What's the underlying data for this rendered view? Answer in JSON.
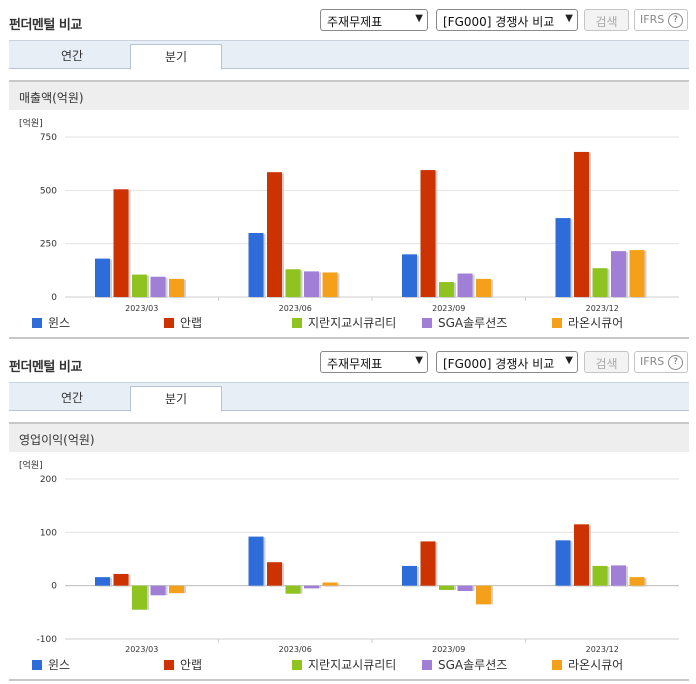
{
  "controls": {
    "title": "펀더멘털 비교",
    "select1": "주재무제표",
    "select2": "[FG000] 경쟁사 비교",
    "search_label": "검색",
    "ifrs_label": "IFRS",
    "help_glyph": "?"
  },
  "tabs": [
    "연간",
    "분기"
  ],
  "active_tab": "분기",
  "colors": {
    "윈스": "#2e6cd9",
    "안랩": "#cc3300",
    "지란지교시큐리티": "#8fc31f",
    "SGA솔루션즈": "#a27fd6",
    "라온시큐어": "#f5a01a"
  },
  "legend_names": [
    "윈스",
    "안랩",
    "지란지교시큐리티",
    "SGA솔루션즈",
    "라온시큐어"
  ],
  "chart_data": [
    {
      "type": "bar",
      "title": "매출액(억원)",
      "unit_label": "[억원]",
      "categories": [
        "2023/03",
        "2023/06",
        "2023/09",
        "2023/12"
      ],
      "ylim": [
        0,
        750
      ],
      "yticks": [
        "0",
        "250",
        "500",
        "750"
      ],
      "ytick_values": [
        0,
        250,
        500,
        750
      ],
      "grid": true,
      "legend": "bottom",
      "series": [
        {
          "name": "윈스",
          "values": [
            180,
            300,
            200,
            370
          ]
        },
        {
          "name": "안랩",
          "values": [
            505,
            585,
            595,
            680
          ]
        },
        {
          "name": "지란지교시큐리티",
          "values": [
            105,
            130,
            70,
            135
          ]
        },
        {
          "name": "SGA솔루션즈",
          "values": [
            95,
            120,
            110,
            215
          ]
        },
        {
          "name": "라온시큐어",
          "values": [
            85,
            115,
            85,
            220
          ]
        }
      ]
    },
    {
      "type": "bar",
      "title": "영업이익(억원)",
      "unit_label": "[억원]",
      "categories": [
        "2023/03",
        "2023/06",
        "2023/09",
        "2023/12"
      ],
      "ylim": [
        -100,
        200
      ],
      "yticks": [
        "-100",
        "0",
        "100",
        "200"
      ],
      "ytick_values": [
        -100,
        0,
        100,
        200
      ],
      "grid": true,
      "legend": "bottom",
      "series": [
        {
          "name": "윈스",
          "values": [
            16,
            92,
            37,
            85
          ]
        },
        {
          "name": "안랩",
          "values": [
            22,
            44,
            83,
            115
          ]
        },
        {
          "name": "지란지교시큐리티",
          "values": [
            -45,
            -15,
            -8,
            37
          ]
        },
        {
          "name": "SGA솔루션즈",
          "values": [
            -18,
            -5,
            -10,
            38
          ]
        },
        {
          "name": "라온시큐어",
          "values": [
            -14,
            6,
            -35,
            16
          ]
        }
      ]
    }
  ]
}
